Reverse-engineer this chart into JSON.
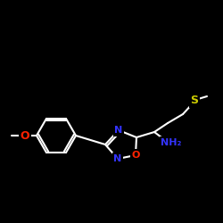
{
  "background_color": "#000000",
  "bond_color": "#ffffff",
  "atoms": {
    "S": {
      "color": "#cccc00"
    },
    "O": {
      "color": "#ff2200"
    },
    "N": {
      "color": "#3333ff"
    },
    "NH2": {
      "color": "#3333ff"
    }
  },
  "figsize": [
    2.5,
    2.5
  ],
  "dpi": 100
}
